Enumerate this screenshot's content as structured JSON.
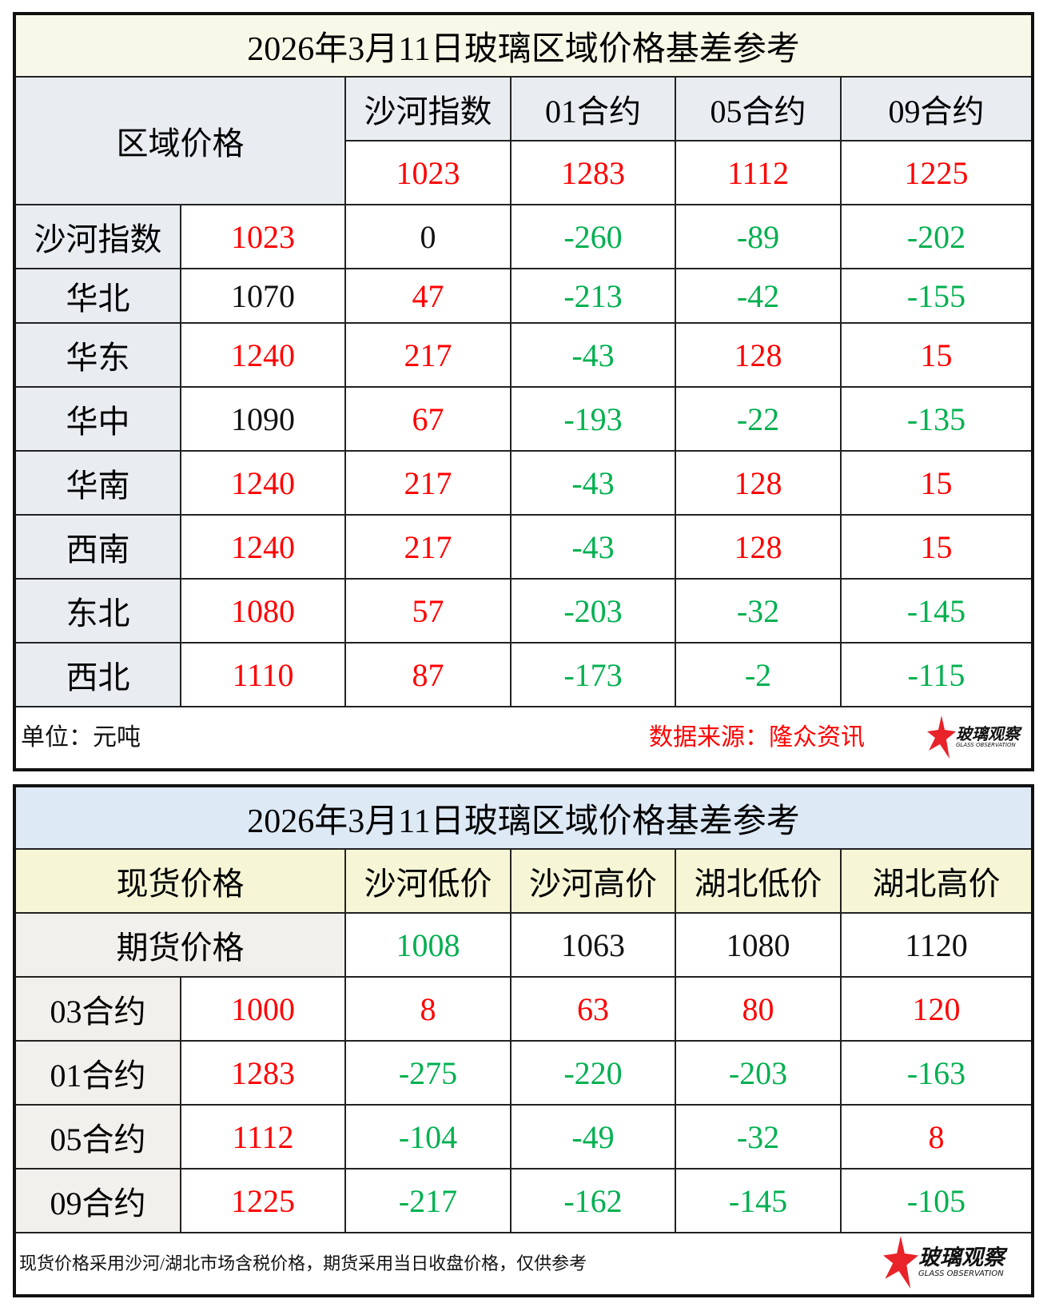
{
  "table1": {
    "title": "2026年3月11日玻璃区域价格基差参考",
    "corner": "区域价格",
    "columns": [
      "沙河指数",
      "01合约",
      "05合约",
      "09合约"
    ],
    "column_values": [
      {
        "v": "1023",
        "c": "r"
      },
      {
        "v": "1283",
        "c": "r"
      },
      {
        "v": "1112",
        "c": "r"
      },
      {
        "v": "1225",
        "c": "r"
      }
    ],
    "rows": [
      {
        "label": "沙河指数",
        "cells": [
          {
            "v": "1023",
            "c": "r"
          },
          {
            "v": "0",
            "c": "k"
          },
          {
            "v": "-260",
            "c": "g"
          },
          {
            "v": "-89",
            "c": "g"
          },
          {
            "v": "-202",
            "c": "g"
          }
        ]
      },
      {
        "label": "华北",
        "cells": [
          {
            "v": "1070",
            "c": "k"
          },
          {
            "v": "47",
            "c": "r"
          },
          {
            "v": "-213",
            "c": "g"
          },
          {
            "v": "-42",
            "c": "g"
          },
          {
            "v": "-155",
            "c": "g"
          }
        ]
      },
      {
        "label": "华东",
        "cells": [
          {
            "v": "1240",
            "c": "r"
          },
          {
            "v": "217",
            "c": "r"
          },
          {
            "v": "-43",
            "c": "g"
          },
          {
            "v": "128",
            "c": "r"
          },
          {
            "v": "15",
            "c": "r"
          }
        ]
      },
      {
        "label": "华中",
        "cells": [
          {
            "v": "1090",
            "c": "k"
          },
          {
            "v": "67",
            "c": "r"
          },
          {
            "v": "-193",
            "c": "g"
          },
          {
            "v": "-22",
            "c": "g"
          },
          {
            "v": "-135",
            "c": "g"
          }
        ]
      },
      {
        "label": "华南",
        "cells": [
          {
            "v": "1240",
            "c": "r"
          },
          {
            "v": "217",
            "c": "r"
          },
          {
            "v": "-43",
            "c": "g"
          },
          {
            "v": "128",
            "c": "r"
          },
          {
            "v": "15",
            "c": "r"
          }
        ]
      },
      {
        "label": "西南",
        "cells": [
          {
            "v": "1240",
            "c": "r"
          },
          {
            "v": "217",
            "c": "r"
          },
          {
            "v": "-43",
            "c": "g"
          },
          {
            "v": "128",
            "c": "r"
          },
          {
            "v": "15",
            "c": "r"
          }
        ]
      },
      {
        "label": "东北",
        "cells": [
          {
            "v": "1080",
            "c": "r"
          },
          {
            "v": "57",
            "c": "r"
          },
          {
            "v": "-203",
            "c": "g"
          },
          {
            "v": "-32",
            "c": "g"
          },
          {
            "v": "-145",
            "c": "g"
          }
        ]
      },
      {
        "label": "西北",
        "cells": [
          {
            "v": "1110",
            "c": "r"
          },
          {
            "v": "87",
            "c": "r"
          },
          {
            "v": "-173",
            "c": "g"
          },
          {
            "v": "-2",
            "c": "g"
          },
          {
            "v": "-115",
            "c": "g"
          }
        ]
      }
    ],
    "unit": "单位：元吨",
    "source": "数据来源：隆众资讯"
  },
  "table2": {
    "title": "2026年3月11日玻璃区域价格基差参考",
    "corner": "现货价格",
    "columns": [
      "沙河低价",
      "沙河高价",
      "湖北低价",
      "湖北高价"
    ],
    "futures_label": "期货价格",
    "column_values": [
      {
        "v": "1008",
        "c": "g"
      },
      {
        "v": "1063",
        "c": "k"
      },
      {
        "v": "1080",
        "c": "k"
      },
      {
        "v": "1120",
        "c": "k"
      }
    ],
    "rows": [
      {
        "label": "03合约",
        "cells": [
          {
            "v": "1000",
            "c": "r"
          },
          {
            "v": "8",
            "c": "r"
          },
          {
            "v": "63",
            "c": "r"
          },
          {
            "v": "80",
            "c": "r"
          },
          {
            "v": "120",
            "c": "r"
          }
        ]
      },
      {
        "label": "01合约",
        "cells": [
          {
            "v": "1283",
            "c": "r"
          },
          {
            "v": "-275",
            "c": "g"
          },
          {
            "v": "-220",
            "c": "g"
          },
          {
            "v": "-203",
            "c": "g"
          },
          {
            "v": "-163",
            "c": "g"
          }
        ]
      },
      {
        "label": "05合约",
        "cells": [
          {
            "v": "1112",
            "c": "r"
          },
          {
            "v": "-104",
            "c": "g"
          },
          {
            "v": "-49",
            "c": "g"
          },
          {
            "v": "-32",
            "c": "g"
          },
          {
            "v": "8",
            "c": "r"
          }
        ]
      },
      {
        "label": "09合约",
        "cells": [
          {
            "v": "1225",
            "c": "r"
          },
          {
            "v": "-217",
            "c": "g"
          },
          {
            "v": "-162",
            "c": "g"
          },
          {
            "v": "-145",
            "c": "g"
          },
          {
            "v": "-105",
            "c": "g"
          }
        ]
      }
    ],
    "note": "现货价格采用沙河/湖北市场含税价格，期货采用当日收盘价格，仅供参考"
  },
  "logo": {
    "cn": "玻璃观察",
    "en": "GLASS OBSERVATION"
  },
  "colors": {
    "positive": "#ff0000",
    "negative": "#00b050",
    "neutral": "#111111"
  }
}
